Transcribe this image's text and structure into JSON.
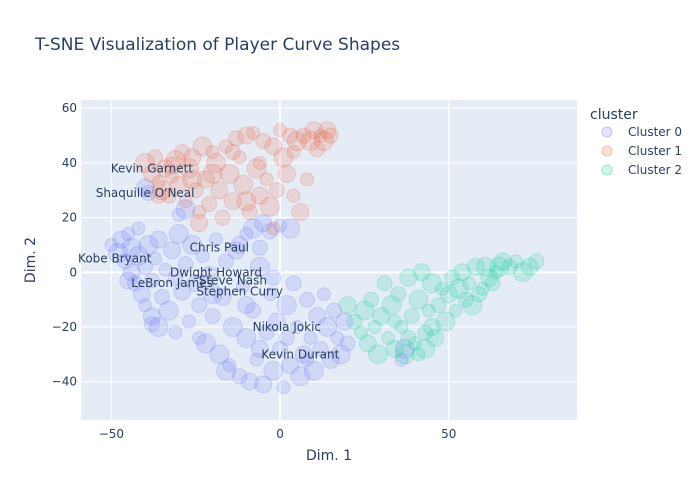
{
  "chart_data": {
    "type": "scatter",
    "title": "T-SNE Visualization of Player Curve Shapes",
    "xlabel": "Dim. 1",
    "ylabel": "Dim. 2",
    "xlim": [
      -59,
      88
    ],
    "ylim": [
      -54,
      63
    ],
    "xticks": [
      -50,
      0,
      50
    ],
    "yticks": [
      -40,
      -20,
      0,
      20,
      40,
      60
    ],
    "grid": true,
    "legend": {
      "title": "cluster",
      "placement": "right"
    },
    "colors": {
      "plot_bg": "#e5ecf6",
      "grid": "#ffffff",
      "text": "#2a3f5f",
      "Cluster 0": "#636efa",
      "Cluster 1": "#ef553b",
      "Cluster 2": "#00cc96"
    },
    "series": [
      {
        "name": "Cluster 0",
        "points": [
          [
            -50,
            10
          ],
          [
            -48,
            7
          ],
          [
            -47,
            12
          ],
          [
            -46,
            4
          ],
          [
            -45,
            14
          ],
          [
            -44,
            9
          ],
          [
            -44,
            0
          ],
          [
            -43,
            -4
          ],
          [
            -42,
            16
          ],
          [
            -42,
            6
          ],
          [
            -41,
            -8
          ],
          [
            -40,
            2
          ],
          [
            -40,
            -12
          ],
          [
            -39,
            10
          ],
          [
            -38,
            -16
          ],
          [
            -38,
            -3
          ],
          [
            -37,
            5
          ],
          [
            -36,
            -20
          ],
          [
            -36,
            12
          ],
          [
            -35,
            -9
          ],
          [
            -34,
            1
          ],
          [
            -33,
            -14
          ],
          [
            -32,
            8
          ],
          [
            -31,
            -2
          ],
          [
            -31,
            -22
          ],
          [
            -30,
            14
          ],
          [
            -29,
            -7
          ],
          [
            -28,
            3
          ],
          [
            -27,
            -18
          ],
          [
            -26,
            10
          ],
          [
            -25,
            -4
          ],
          [
            -24,
            -12
          ],
          [
            -23,
            6
          ],
          [
            -22,
            -26
          ],
          [
            -21,
            -1
          ],
          [
            -20,
            -16
          ],
          [
            -19,
            12
          ],
          [
            -18,
            -30
          ],
          [
            -17,
            -9
          ],
          [
            -16,
            4
          ],
          [
            -15,
            -34
          ],
          [
            -14,
            -20
          ],
          [
            -13,
            8
          ],
          [
            -12,
            -38
          ],
          [
            -11,
            -5
          ],
          [
            -10,
            -24
          ],
          [
            -9,
            -40
          ],
          [
            -8,
            -14
          ],
          [
            -7,
            -32
          ],
          [
            -6,
            2
          ],
          [
            -5,
            -41
          ],
          [
            -4,
            -22
          ],
          [
            -3,
            -8
          ],
          [
            -2,
            -36
          ],
          [
            -1,
            -18
          ],
          [
            0,
            -28
          ],
          [
            1,
            -42
          ],
          [
            2,
            -12
          ],
          [
            3,
            -34
          ],
          [
            4,
            -4
          ],
          [
            5,
            -20
          ],
          [
            6,
            -38
          ],
          [
            7,
            -30
          ],
          [
            8,
            -10
          ],
          [
            9,
            -24
          ],
          [
            10,
            -36
          ],
          [
            11,
            -16
          ],
          [
            12,
            -28
          ],
          [
            13,
            -8
          ],
          [
            14,
            -20
          ],
          [
            15,
            -32
          ],
          [
            16,
            -14
          ],
          [
            17,
            -24
          ],
          [
            18,
            -30
          ],
          [
            19,
            -18
          ],
          [
            20,
            -26
          ],
          [
            -30,
            21
          ],
          [
            -28,
            23
          ],
          [
            -40,
            31
          ],
          [
            -39,
            29
          ],
          [
            -10,
            14
          ],
          [
            -8,
            16
          ],
          [
            -5,
            18
          ],
          [
            -3,
            15
          ],
          [
            0,
            17
          ],
          [
            3,
            16
          ],
          [
            -12,
            10
          ],
          [
            -6,
            9
          ],
          [
            36,
            -32
          ],
          [
            37,
            -28
          ],
          [
            -45,
            -3
          ],
          [
            -38,
            -19
          ],
          [
            -24,
            -24
          ],
          [
            -16,
            -36
          ],
          [
            -6,
            -28
          ],
          [
            2,
            -24
          ],
          [
            8,
            -32
          ],
          [
            -20,
            -8
          ],
          [
            -10,
            -12
          ],
          [
            -2,
            -2
          ]
        ]
      },
      {
        "name": "Cluster 1",
        "points": [
          [
            -40,
            40
          ],
          [
            -38,
            36
          ],
          [
            -37,
            42
          ],
          [
            -36,
            33
          ],
          [
            -35,
            30
          ],
          [
            -34,
            38
          ],
          [
            -33,
            28
          ],
          [
            -32,
            35
          ],
          [
            -31,
            41
          ],
          [
            -30,
            32
          ],
          [
            -29,
            44
          ],
          [
            -28,
            26
          ],
          [
            -27,
            38
          ],
          [
            -26,
            42
          ],
          [
            -25,
            30
          ],
          [
            -24,
            22
          ],
          [
            -23,
            46
          ],
          [
            -22,
            34
          ],
          [
            -21,
            25
          ],
          [
            -20,
            44
          ],
          [
            -19,
            40
          ],
          [
            -18,
            30
          ],
          [
            -17,
            20
          ],
          [
            -16,
            46
          ],
          [
            -15,
            36
          ],
          [
            -14,
            26
          ],
          [
            -13,
            49
          ],
          [
            -12,
            42
          ],
          [
            -11,
            32
          ],
          [
            -10,
            50
          ],
          [
            -9,
            22
          ],
          [
            -8,
            51
          ],
          [
            -7,
            38
          ],
          [
            -6,
            28
          ],
          [
            -5,
            48
          ],
          [
            -4,
            34
          ],
          [
            -3,
            24
          ],
          [
            -2,
            46
          ],
          [
            -1,
            30
          ],
          [
            0,
            52
          ],
          [
            1,
            42
          ],
          [
            2,
            36
          ],
          [
            3,
            50
          ],
          [
            4,
            28
          ],
          [
            5,
            48
          ],
          [
            6,
            22
          ],
          [
            7,
            50
          ],
          [
            8,
            34
          ],
          [
            9,
            48
          ],
          [
            10,
            52
          ],
          [
            11,
            45
          ],
          [
            12,
            50
          ],
          [
            13,
            48
          ],
          [
            14,
            52
          ],
          [
            15,
            50
          ],
          [
            -6,
            40
          ],
          [
            -10,
            26
          ],
          [
            -24,
            18
          ],
          [
            -36,
            28
          ],
          [
            -2,
            16
          ],
          [
            -20,
            36
          ],
          [
            -32,
            39
          ],
          [
            -14,
            44
          ],
          [
            4,
            44
          ],
          [
            -26,
            34
          ]
        ]
      },
      {
        "name": "Cluster 2",
        "points": [
          [
            20,
            -12
          ],
          [
            22,
            -18
          ],
          [
            24,
            -22
          ],
          [
            25,
            -14
          ],
          [
            26,
            -26
          ],
          [
            27,
            -10
          ],
          [
            28,
            -20
          ],
          [
            29,
            -30
          ],
          [
            30,
            -16
          ],
          [
            31,
            -4
          ],
          [
            32,
            -24
          ],
          [
            33,
            -12
          ],
          [
            34,
            -28
          ],
          [
            35,
            -8
          ],
          [
            36,
            -20
          ],
          [
            37,
            -30
          ],
          [
            38,
            -2
          ],
          [
            39,
            -16
          ],
          [
            40,
            -26
          ],
          [
            41,
            -10
          ],
          [
            42,
            0
          ],
          [
            43,
            -22
          ],
          [
            44,
            -14
          ],
          [
            45,
            -4
          ],
          [
            46,
            -24
          ],
          [
            47,
            -12
          ],
          [
            48,
            -6
          ],
          [
            49,
            -18
          ],
          [
            50,
            -8
          ],
          [
            51,
            -2
          ],
          [
            52,
            -14
          ],
          [
            53,
            -6
          ],
          [
            54,
            0
          ],
          [
            55,
            -10
          ],
          [
            56,
            -4
          ],
          [
            57,
            -12
          ],
          [
            58,
            2
          ],
          [
            59,
            -8
          ],
          [
            60,
            -6
          ],
          [
            61,
            2
          ],
          [
            62,
            -2
          ],
          [
            63,
            -4
          ],
          [
            64,
            0
          ],
          [
            65,
            2
          ],
          [
            66,
            4
          ],
          [
            68,
            2
          ],
          [
            70,
            4
          ],
          [
            72,
            0
          ],
          [
            74,
            2
          ],
          [
            76,
            4
          ],
          [
            41,
            -30
          ],
          [
            43,
            -28
          ],
          [
            45,
            -20
          ],
          [
            38,
            -24
          ],
          [
            34,
            -18
          ]
        ]
      }
    ],
    "annotations": [
      {
        "text": "Kevin Garnett",
        "x": -38,
        "y": 38
      },
      {
        "text": "Shaquille O'Neal",
        "x": -40,
        "y": 29
      },
      {
        "text": "Chris Paul",
        "x": -18,
        "y": 9
      },
      {
        "text": "Kobe Bryant",
        "x": -49,
        "y": 5
      },
      {
        "text": "Dwight Howard",
        "x": -19,
        "y": 0
      },
      {
        "text": "Steve Nash",
        "x": -14,
        "y": -3
      },
      {
        "text": "LeBron James",
        "x": -32,
        "y": -4
      },
      {
        "text": "Stephen Curry",
        "x": -12,
        "y": -7
      },
      {
        "text": "Nikola Jokic",
        "x": 2,
        "y": -20
      },
      {
        "text": "Kevin Durant",
        "x": 6,
        "y": -30
      }
    ]
  }
}
